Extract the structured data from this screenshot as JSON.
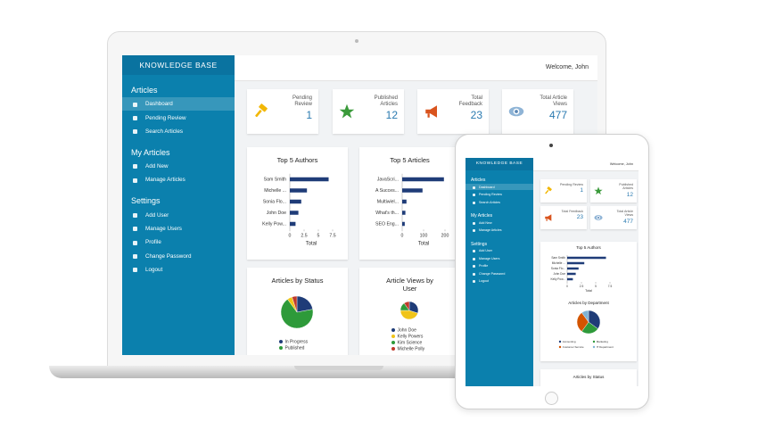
{
  "brand": "KNOWLEDGE BASE",
  "welcome": "Welcome, John",
  "sidebar": [
    {
      "heading": "Articles",
      "items": [
        "Dashboard",
        "Pending Review",
        "Search Articles"
      ]
    },
    {
      "heading": "My Articles",
      "items": [
        "Add New",
        "Manage Articles"
      ]
    },
    {
      "heading": "Settings",
      "items": [
        "Add User",
        "Manage Users",
        "Profile",
        "Change Password",
        "Logout"
      ]
    }
  ],
  "stats": [
    {
      "label": "Pending Review",
      "value": 1
    },
    {
      "label": "Published Articles",
      "value": 12
    },
    {
      "label": "Total Feedback",
      "value": 23
    },
    {
      "label": "Total Article Views",
      "value": 477
    }
  ],
  "chart_data": [
    {
      "type": "bar",
      "orientation": "horizontal",
      "title": "Top 5 Authors",
      "categories": [
        "Sam Smith",
        "Michelle ...",
        "Sonia Flo...",
        "John Doe",
        "Kelly Pow..."
      ],
      "values": [
        6.8,
        3,
        2,
        1.5,
        1
      ],
      "color": "#1f3c78",
      "xlim": [
        0,
        7.5
      ],
      "xticks": [
        0,
        2.5,
        5,
        7.5
      ],
      "x_label": "Total"
    },
    {
      "type": "bar",
      "orientation": "horizontal",
      "title": "Top 5 Articles",
      "categories": [
        "JavaScri...",
        "A Succes...",
        "Multiwiel...",
        "What's th...",
        "SEO Eng..."
      ],
      "values": [
        195,
        95,
        20,
        15,
        12
      ],
      "color": "#1f3c78",
      "xlim": [
        0,
        200
      ],
      "xticks": [
        0,
        100,
        200
      ],
      "x_label": "Total"
    },
    {
      "type": "pie",
      "title": "Articles by Status",
      "categories": [
        "In Progress",
        "Published",
        null,
        null
      ],
      "values": [
        22,
        68,
        5,
        5
      ],
      "colors": [
        "#1f3c78",
        "#2e9a3a",
        "#f0c419",
        "#c0392b"
      ]
    },
    {
      "type": "pie",
      "title": "Article Views by User",
      "categories": [
        "John Doe",
        "Kelly Powers",
        "Kim Science",
        "Michelle Polly"
      ],
      "values": [
        30,
        45,
        15,
        10
      ],
      "colors": [
        "#1f3c78",
        "#f0c419",
        "#2e9a3a",
        "#c0392b"
      ]
    },
    {
      "type": "bar",
      "orientation": "horizontal",
      "title": "Top 5 Authors",
      "categories": [
        "Sam Smith",
        "Michelle ...",
        "Sonia Flo...",
        "John Doe",
        "Kelly Pow..."
      ],
      "values": [
        6.8,
        3,
        2,
        1.5,
        1
      ],
      "color": "#1f3c78",
      "xlim": [
        0,
        7.5
      ],
      "xticks": [
        0,
        2.5,
        5,
        7.5
      ],
      "x_label": "Total"
    },
    {
      "type": "pie",
      "title": "Articles by Department",
      "categories": [
        "Accounting",
        "Marketing",
        "Customer Service",
        "IT Department"
      ],
      "values": [
        35,
        25,
        30,
        10
      ],
      "colors": [
        "#1f3c78",
        "#2e9a3a",
        "#d35400",
        "#7fb3d5"
      ]
    }
  ]
}
